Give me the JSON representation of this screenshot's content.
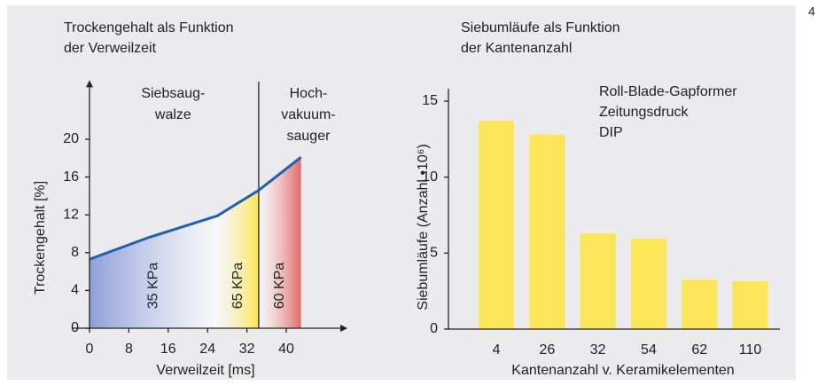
{
  "page_number": "4",
  "chart_data": [
    {
      "type": "area",
      "title": [
        "Trockengehalt als Funktion",
        "der Verweilzeit"
      ],
      "x_label": "Verweilzeit [ms]",
      "y_label": "Trockengehalt [%]",
      "xlim": [
        0,
        51
      ],
      "ylim": [
        0,
        25.5
      ],
      "xticks": [
        0,
        8,
        16,
        24,
        32,
        40
      ],
      "yticks": [
        0,
        4,
        8,
        12,
        16,
        20
      ],
      "x": [
        0,
        12,
        26,
        34.4,
        43
      ],
      "values": [
        7.3,
        9.6,
        11.9,
        14.6,
        18.1
      ],
      "color": "#1f5fb0",
      "regions": [
        {
          "label": "35 KPa",
          "from": 0,
          "to": 26,
          "color": "#8e9fd9"
        },
        {
          "label": "65 KPa",
          "from": 26,
          "to": 34.4,
          "color": "#fde550"
        },
        {
          "label": "60 KPa",
          "from": 34.4,
          "to": 43,
          "color": "#e26a6a"
        }
      ],
      "zones": [
        {
          "lines": [
            "Siebsaug-",
            "walze"
          ],
          "x": 17
        },
        {
          "lines": [
            "Hoch-",
            "vakuum-",
            "sauger"
          ],
          "x": 44.5
        }
      ]
    },
    {
      "type": "bar",
      "title": [
        "Siebumläufe als Funktion",
        "der Kantenanzahl"
      ],
      "x_label": "Kantenanzahl v. Keramikelementen",
      "y_label": "Siebumläufe (Anzahl •10⁶)",
      "annotation": [
        "Roll-Blade-Gapformer",
        "Zeitungsdruck",
        "DIP"
      ],
      "categories": [
        "4",
        "26",
        "32",
        "54",
        "62",
        "110"
      ],
      "values": [
        13.7,
        12.8,
        6.3,
        5.95,
        3.27,
        3.15
      ],
      "color": "#fde55a",
      "ylim": [
        0,
        15
      ],
      "yticks": [
        0,
        5,
        10,
        15
      ]
    }
  ]
}
